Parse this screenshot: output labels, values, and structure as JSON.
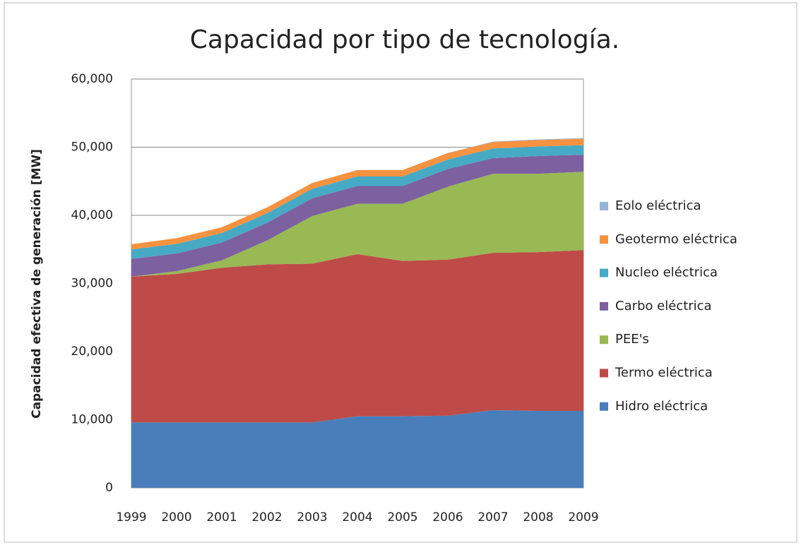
{
  "chart_data": {
    "type": "stacked_area",
    "title": "Capacidad por tipo de tecnología.",
    "y_label": "Capacidad efectiva de generación [MW]",
    "categories": [
      "1999",
      "2000",
      "2001",
      "2002",
      "2003",
      "2004",
      "2005",
      "2006",
      "2007",
      "2008",
      "2009"
    ],
    "series": [
      {
        "name": "Hidro eléctrica",
        "color": "#4a7ebb",
        "values": [
          9600,
          9600,
          9600,
          9600,
          9600,
          10500,
          10500,
          10600,
          11400,
          11300,
          11300
        ]
      },
      {
        "name": "Termo eléctrica",
        "color": "#be4b48",
        "values": [
          21400,
          21800,
          22700,
          23200,
          23300,
          23800,
          22800,
          22900,
          23100,
          23300,
          23600
        ]
      },
      {
        "name": "PEE's",
        "color": "#98b954",
        "values": [
          0,
          400,
          1100,
          3500,
          7000,
          7400,
          8400,
          10700,
          11600,
          11500,
          11500
        ]
      },
      {
        "name": "Carbo eléctrica",
        "color": "#7d60a0",
        "values": [
          2600,
          2600,
          2600,
          2600,
          2600,
          2600,
          2600,
          2600,
          2300,
          2600,
          2500
        ]
      },
      {
        "name": "Nucleo  eléctrica",
        "color": "#46aac5",
        "values": [
          1400,
          1400,
          1400,
          1400,
          1400,
          1400,
          1400,
          1400,
          1400,
          1400,
          1400
        ]
      },
      {
        "name": "Geotermo eléctrica",
        "color": "#f69240",
        "values": [
          750,
          850,
          850,
          850,
          850,
          950,
          950,
          950,
          950,
          950,
          950
        ]
      },
      {
        "name": "Eolo  eléctrica",
        "color": "#95b3d7",
        "values": [
          2,
          2,
          2,
          2,
          2,
          2,
          2,
          2,
          85,
          85,
          85
        ]
      }
    ],
    "ylim": [
      0,
      60000
    ],
    "yticks": [
      0,
      {
        "value": 10000,
        "label": "10,000"
      },
      {
        "value": 20000,
        "label": "20,000"
      },
      {
        "value": 30000,
        "label": "30,000"
      },
      {
        "value": 40000,
        "label": "40,000"
      },
      {
        "value": 50000,
        "label": "50,000"
      },
      {
        "value": 60000,
        "label": "60,000"
      }
    ],
    "grid": true,
    "legend": "right"
  }
}
